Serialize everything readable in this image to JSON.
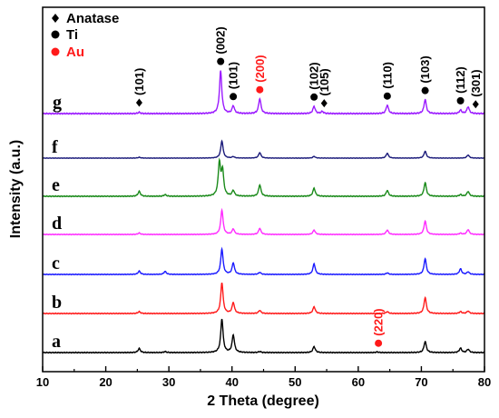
{
  "chart_data": {
    "type": "line",
    "title": "",
    "xlabel": "2 Theta (degree)",
    "ylabel": "Intensity (a.u.)",
    "xlim": [
      10,
      80
    ],
    "xticks": [
      10,
      20,
      30,
      40,
      50,
      60,
      70,
      80
    ],
    "y_tick_labels": false,
    "grid": false,
    "legend": {
      "placement": "top-left",
      "entries": [
        {
          "symbol": "diamond",
          "label": "Anatase",
          "color": "#000000"
        },
        {
          "symbol": "circle",
          "label": "Ti",
          "color": "#000000"
        },
        {
          "symbol": "circle",
          "label": "Au",
          "color": "#ff1a1a"
        }
      ]
    },
    "series": [
      {
        "name": "a",
        "color": "#000000",
        "peaks": [
          [
            25.3,
            0.12
          ],
          [
            29.4,
            0.03
          ],
          [
            38.4,
            1.0
          ],
          [
            40.2,
            0.52
          ],
          [
            44.4,
            0.03
          ],
          [
            53.0,
            0.18
          ],
          [
            63.0,
            0.02
          ],
          [
            70.6,
            0.33
          ],
          [
            76.2,
            0.13
          ],
          [
            77.4,
            0.1
          ]
        ]
      },
      {
        "name": "b",
        "color": "#ff1a1a",
        "peaks": [
          [
            25.3,
            0.06
          ],
          [
            38.4,
            1.0
          ],
          [
            40.2,
            0.35
          ],
          [
            44.4,
            0.1
          ],
          [
            53.0,
            0.22
          ],
          [
            64.6,
            0.06
          ],
          [
            70.6,
            0.52
          ],
          [
            76.2,
            0.06
          ],
          [
            77.4,
            0.08
          ]
        ]
      },
      {
        "name": "c",
        "color": "#1a1aff",
        "peaks": [
          [
            25.3,
            0.13
          ],
          [
            29.4,
            0.12
          ],
          [
            38.4,
            1.0
          ],
          [
            40.2,
            0.45
          ],
          [
            44.4,
            0.08
          ],
          [
            53.0,
            0.42
          ],
          [
            64.6,
            0.06
          ],
          [
            70.6,
            0.62
          ],
          [
            76.2,
            0.22
          ],
          [
            77.4,
            0.1
          ]
        ]
      },
      {
        "name": "d",
        "color": "#ff2bff",
        "peaks": [
          [
            25.3,
            0.06
          ],
          [
            38.4,
            1.0
          ],
          [
            40.2,
            0.22
          ],
          [
            44.4,
            0.25
          ],
          [
            53.0,
            0.18
          ],
          [
            64.6,
            0.18
          ],
          [
            70.6,
            0.55
          ],
          [
            76.2,
            0.05
          ],
          [
            77.4,
            0.2
          ]
        ]
      },
      {
        "name": "e",
        "color": "#1a8a1a",
        "peaks": [
          [
            25.3,
            0.15
          ],
          [
            29.4,
            0.05
          ],
          [
            38.0,
            1.0
          ],
          [
            38.5,
            0.75
          ],
          [
            40.2,
            0.17
          ],
          [
            44.4,
            0.35
          ],
          [
            53.0,
            0.25
          ],
          [
            64.6,
            0.18
          ],
          [
            70.6,
            0.42
          ],
          [
            76.2,
            0.05
          ],
          [
            77.4,
            0.15
          ]
        ]
      },
      {
        "name": "f",
        "color": "#1a1a7a",
        "peaks": [
          [
            25.3,
            0.05
          ],
          [
            38.4,
            1.0
          ],
          [
            40.2,
            0.08
          ],
          [
            44.4,
            0.32
          ],
          [
            53.0,
            0.1
          ],
          [
            64.6,
            0.28
          ],
          [
            70.6,
            0.4
          ],
          [
            77.4,
            0.18
          ]
        ]
      },
      {
        "name": "g",
        "color": "#9b1aff",
        "peaks": [
          [
            25.3,
            0.03
          ],
          [
            38.2,
            1.0
          ],
          [
            40.2,
            0.18
          ],
          [
            44.4,
            0.35
          ],
          [
            53.0,
            0.17
          ],
          [
            54.3,
            0.05
          ],
          [
            64.6,
            0.2
          ],
          [
            70.6,
            0.33
          ],
          [
            76.2,
            0.08
          ],
          [
            77.4,
            0.16
          ]
        ]
      }
    ],
    "peak_labels": [
      {
        "x": 25.3,
        "text": "(101)",
        "phase": "Anatase",
        "series": "g",
        "color": "#000000"
      },
      {
        "x": 38.2,
        "text": "(002)",
        "phase": "Ti",
        "series": "g",
        "color": "#000000"
      },
      {
        "x": 40.2,
        "text": "(101)",
        "phase": "Ti",
        "series": "g",
        "color": "#000000"
      },
      {
        "x": 44.4,
        "text": "(200)",
        "phase": "Au",
        "series": "g",
        "color": "#ff1a1a"
      },
      {
        "x": 53.0,
        "text": "(102)",
        "phase": "Ti",
        "series": "g",
        "color": "#000000"
      },
      {
        "x": 54.6,
        "text": "(105)",
        "phase": "Anatase",
        "series": "g",
        "color": "#000000"
      },
      {
        "x": 64.6,
        "text": "(110)",
        "phase": "Ti",
        "series": "g",
        "color": "#000000"
      },
      {
        "x": 70.6,
        "text": "(103)",
        "phase": "Ti",
        "series": "g",
        "color": "#000000"
      },
      {
        "x": 76.2,
        "text": "(112)",
        "phase": "Ti",
        "series": "g",
        "color": "#000000"
      },
      {
        "x": 78.6,
        "text": "(301)",
        "phase": "Anatase",
        "series": "g",
        "color": "#000000"
      },
      {
        "x": 63.2,
        "text": "(220)",
        "phase": "Au",
        "series": "a",
        "color": "#ff1a1a"
      }
    ]
  }
}
